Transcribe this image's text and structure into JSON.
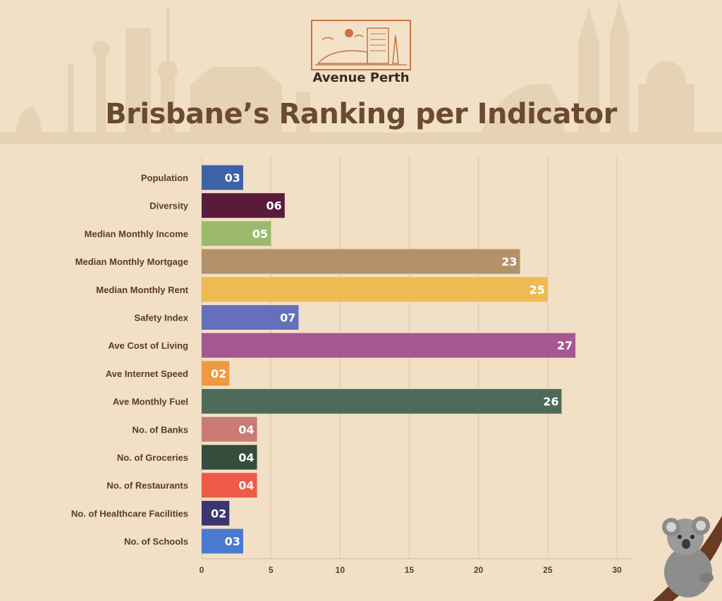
{
  "brand": {
    "name": "Avenue Perth"
  },
  "colors": {
    "background": "#f1e0c6",
    "title": "#6b4a2e",
    "label": "#5a3b22",
    "grid": "#d9c7ad",
    "brand": "#c9743d"
  },
  "chart_data": {
    "type": "bar",
    "orientation": "horizontal",
    "title": "Brisbane’s Ranking per Indicator",
    "xlabel": "",
    "ylabel": "",
    "xlim": [
      0,
      30
    ],
    "xticks": [
      0,
      5,
      10,
      15,
      20,
      25,
      30
    ],
    "grid": true,
    "legend": "none",
    "categories": [
      "Population",
      "Diversity",
      "Median Monthly Income",
      "Median Monthly Mortgage",
      "Median Monthly Rent",
      "Safety Index",
      "Ave Cost of Living",
      "Ave Internet Speed",
      "Ave Monthly Fuel",
      "No. of Banks",
      "No. of Groceries",
      "No. of Restaurants",
      "No. of Healthcare Facilities",
      "No. of Schools"
    ],
    "values": [
      3,
      6,
      5,
      23,
      25,
      7,
      27,
      2,
      26,
      4,
      4,
      4,
      2,
      3
    ],
    "value_labels": [
      "03",
      "06",
      "05",
      "23",
      "25",
      "07",
      "27",
      "02",
      "26",
      "04",
      "04",
      "04",
      "02",
      "03"
    ],
    "bar_colors": [
      "#3e62a8",
      "#5a1a3c",
      "#9cba6e",
      "#b3926a",
      "#f0ba52",
      "#6570bc",
      "#a5578f",
      "#ee9a40",
      "#4d6b58",
      "#c87b72",
      "#364d3d",
      "#ee5a48",
      "#3c3571",
      "#4a7ad0"
    ]
  }
}
